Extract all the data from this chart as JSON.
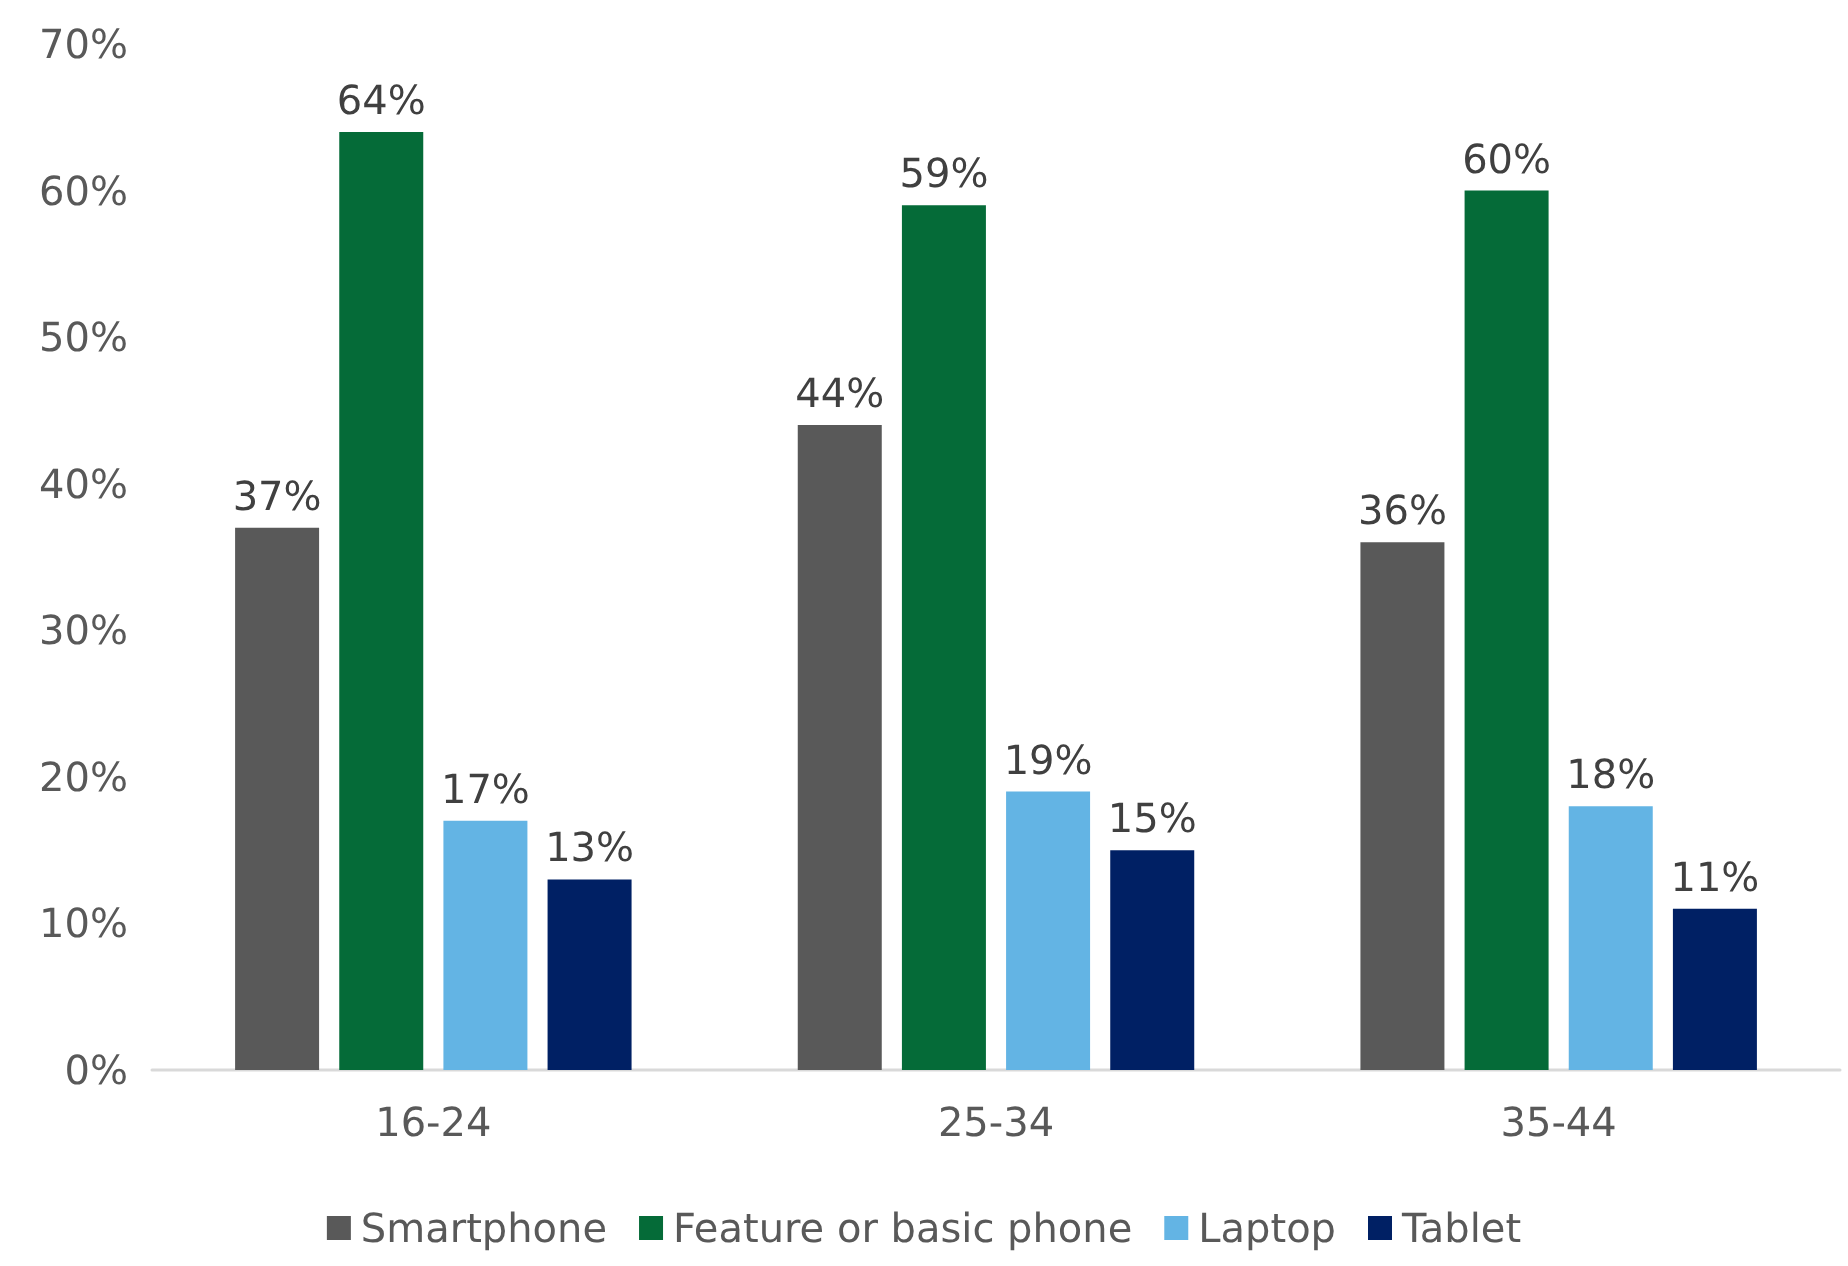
{
  "chart_data": {
    "type": "bar",
    "categories": [
      "16-24",
      "25-34",
      "35-44"
    ],
    "series": [
      {
        "name": "Smartphone",
        "color": "#595959",
        "values": [
          37,
          44,
          36
        ],
        "value_labels": [
          "37%",
          "44%",
          "36%"
        ]
      },
      {
        "name": "Feature or basic phone",
        "color": "#056b38",
        "values": [
          64,
          59,
          60
        ],
        "value_labels": [
          "64%",
          "59%",
          "60%"
        ]
      },
      {
        "name": "Laptop",
        "color": "#63b4e4",
        "values": [
          17,
          19,
          18
        ],
        "value_labels": [
          "17%",
          "19%",
          "18%"
        ]
      },
      {
        "name": "Tablet",
        "color": "#002064",
        "values": [
          13,
          15,
          11
        ],
        "value_labels": [
          "13%",
          "15%",
          "11%"
        ]
      }
    ],
    "ylim": [
      0,
      70
    ],
    "yticks": [
      {
        "value": 0,
        "label": "0%"
      },
      {
        "value": 10,
        "label": "10%"
      },
      {
        "value": 20,
        "label": "20%"
      },
      {
        "value": 30,
        "label": "30%"
      },
      {
        "value": 40,
        "label": "40%"
      },
      {
        "value": 50,
        "label": "50%"
      },
      {
        "value": 60,
        "label": "60%"
      },
      {
        "value": 70,
        "label": "70%"
      }
    ],
    "grid": false,
    "legend": "bottom"
  }
}
